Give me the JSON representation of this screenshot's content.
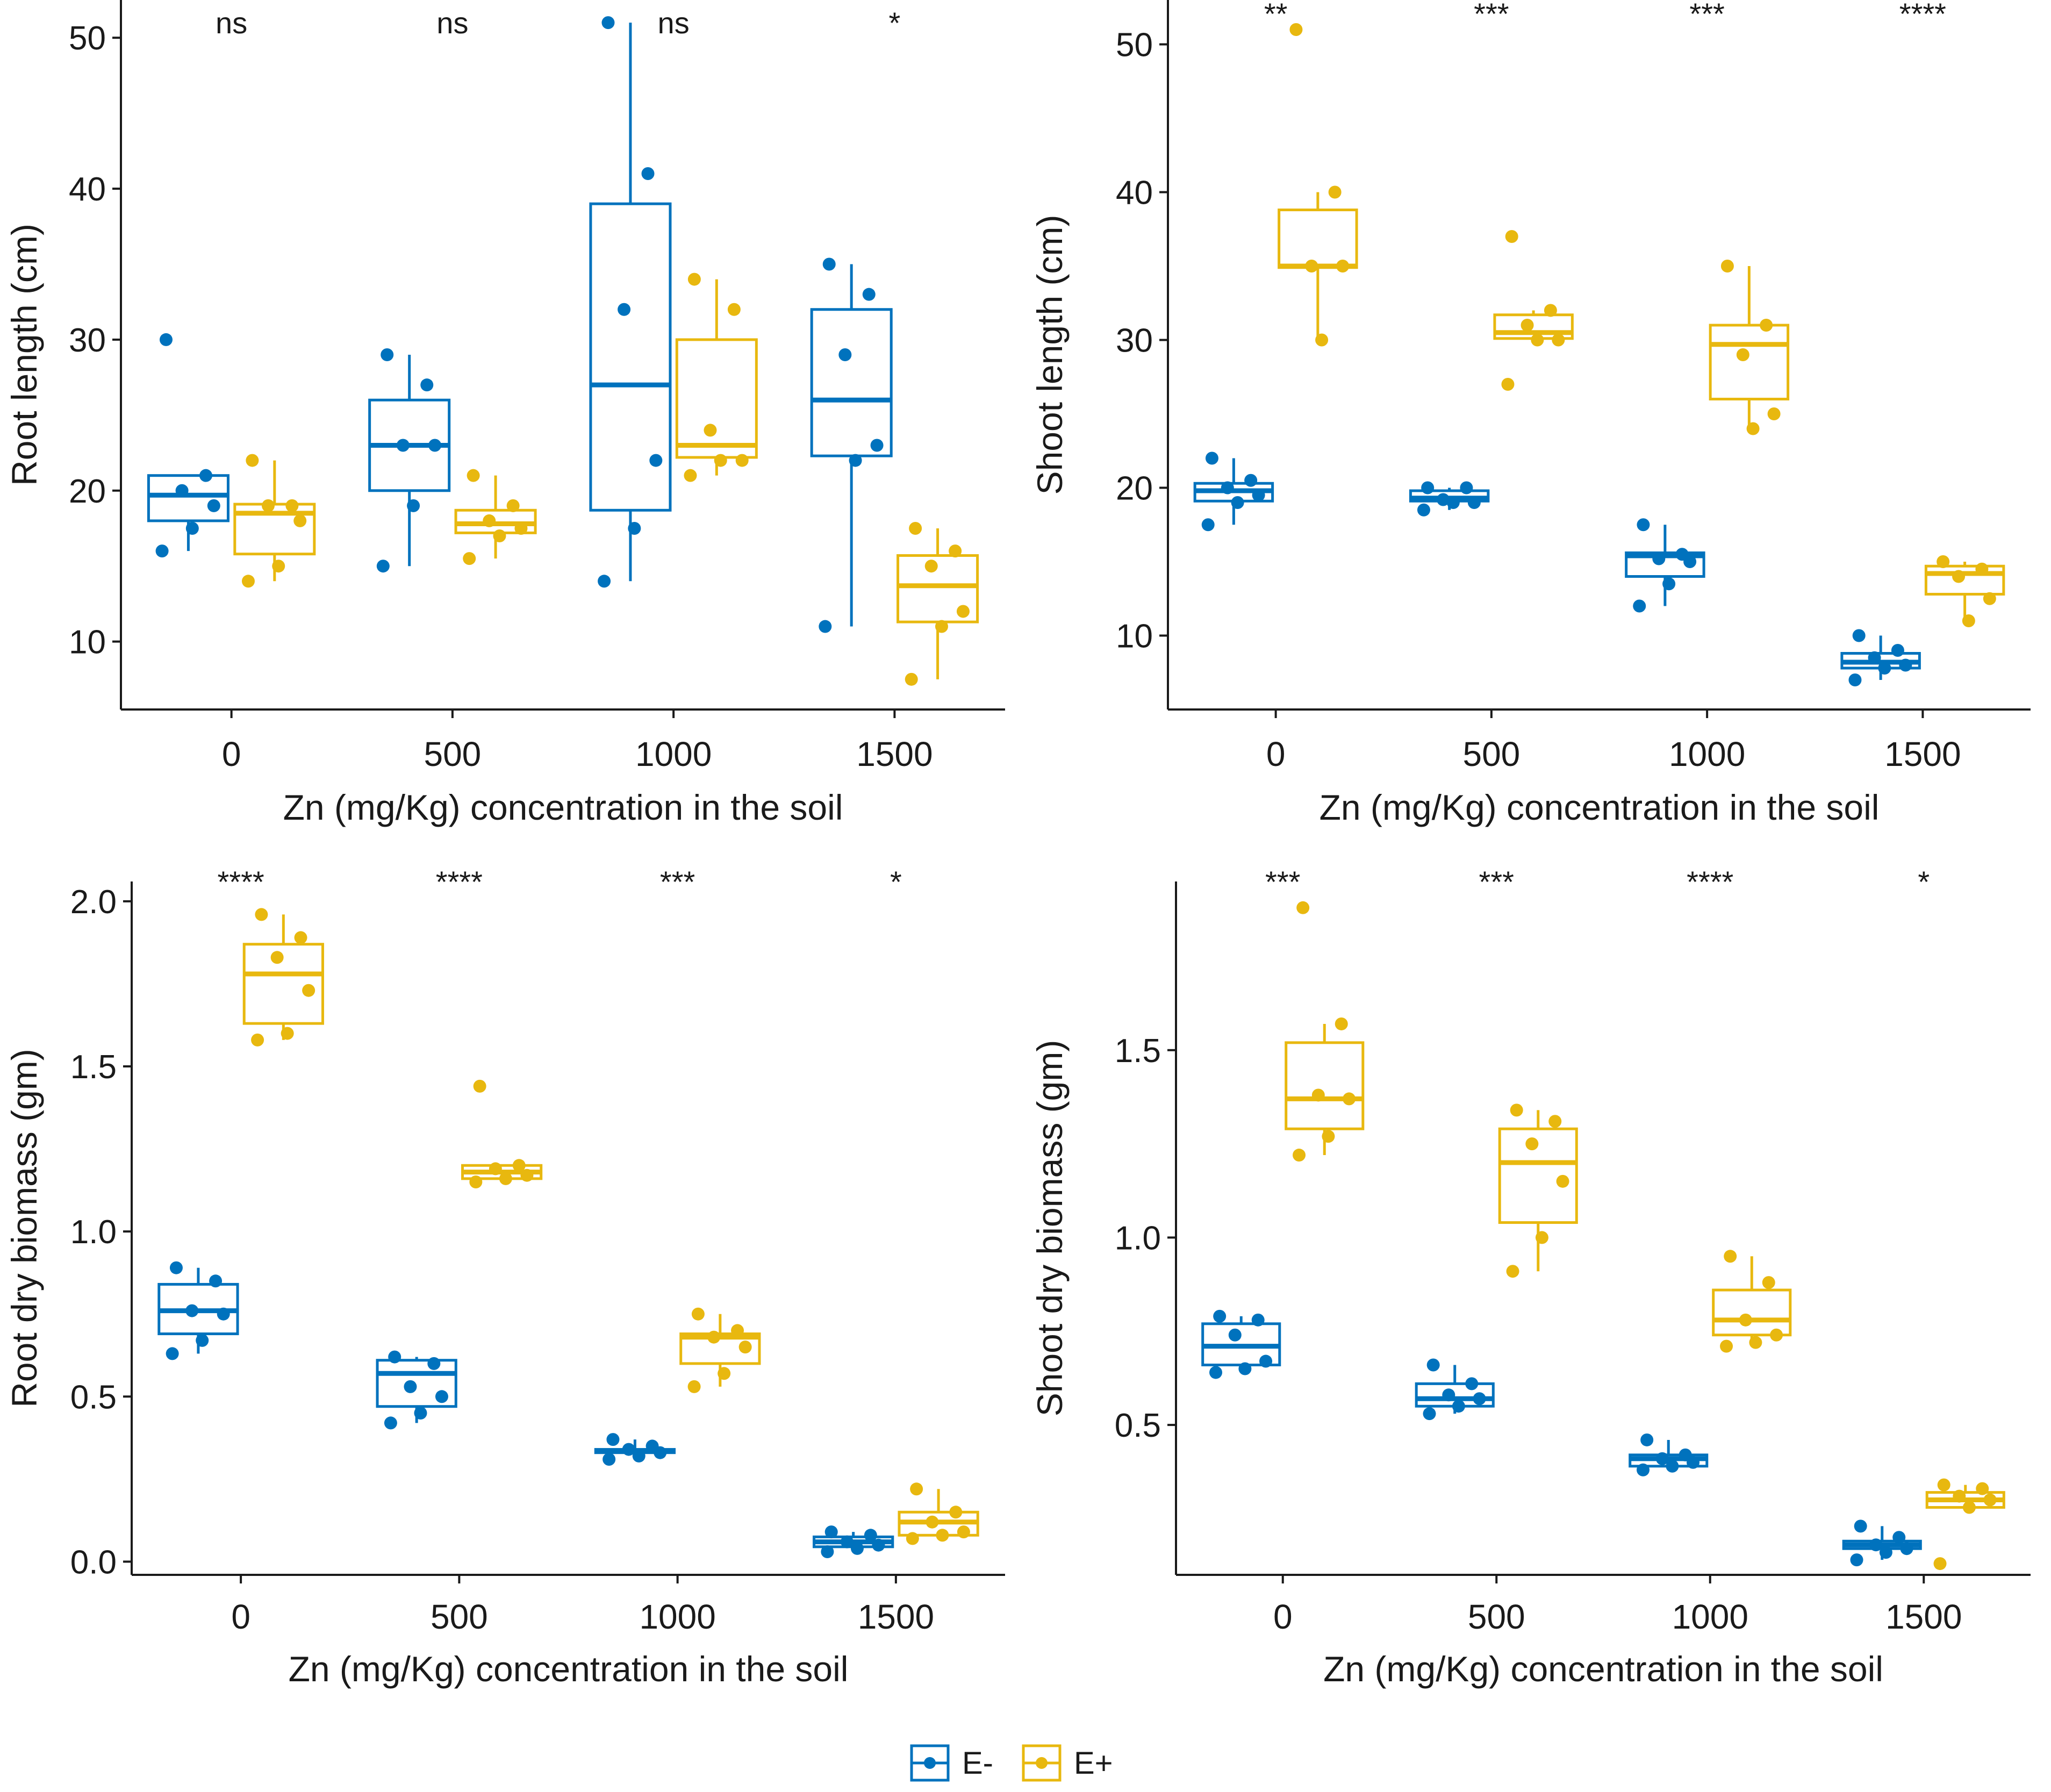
{
  "colors": {
    "E_minus": "#0072BD",
    "E_plus": "#E8B80F",
    "axis": "#1a1a1a"
  },
  "legend": {
    "items": [
      {
        "label": "E-",
        "color": "#0072BD"
      },
      {
        "label": "E+",
        "color": "#E8B80F"
      }
    ]
  },
  "chart_data": [
    {
      "id": "root-length",
      "type": "box",
      "ylabel": "Root length (cm)",
      "xlabel": "Zn (mg/Kg) concentration in the soil",
      "categories": [
        "0",
        "500",
        "1000",
        "1500"
      ],
      "ylim": [
        5.5,
        52.5
      ],
      "yticks": [
        10,
        20,
        30,
        40,
        50
      ],
      "ytick_labels": [
        "10",
        "20",
        "30",
        "40",
        "50"
      ],
      "significance": [
        "ns",
        "ns",
        "ns",
        "*"
      ],
      "series": [
        {
          "name": "E-",
          "boxes": [
            {
              "whisker_low": 16,
              "q1": 18,
              "median": 19.7,
              "q3": 21,
              "whisker_high": 21,
              "points": [
                30,
                21,
                20,
                19,
                17.5,
                16
              ]
            },
            {
              "whisker_low": 15,
              "q1": 20,
              "median": 23,
              "q3": 26,
              "whisker_high": 29,
              "points": [
                29,
                27,
                23,
                23,
                19,
                15
              ]
            },
            {
              "whisker_low": 14,
              "q1": 18.7,
              "median": 27,
              "q3": 39,
              "whisker_high": 51,
              "points": [
                51,
                41,
                32,
                22,
                17.5,
                14
              ]
            },
            {
              "whisker_low": 11,
              "q1": 22.3,
              "median": 26,
              "q3": 32,
              "whisker_high": 35,
              "points": [
                35,
                33,
                29,
                23,
                22,
                11
              ]
            }
          ]
        },
        {
          "name": "E+",
          "boxes": [
            {
              "whisker_low": 14,
              "q1": 15.8,
              "median": 18.5,
              "q3": 19.1,
              "whisker_high": 22,
              "points": [
                22,
                19,
                19,
                18,
                15,
                14
              ]
            },
            {
              "whisker_low": 15.5,
              "q1": 17.2,
              "median": 17.8,
              "q3": 18.7,
              "whisker_high": 21,
              "points": [
                21,
                19,
                18,
                17.5,
                17,
                15.5
              ]
            },
            {
              "whisker_low": 21,
              "q1": 22.2,
              "median": 23,
              "q3": 30,
              "whisker_high": 34,
              "points": [
                34,
                32,
                24,
                22,
                22,
                21
              ]
            },
            {
              "whisker_low": 7.5,
              "q1": 11.3,
              "median": 13.7,
              "q3": 15.7,
              "whisker_high": 17.5,
              "points": [
                17.5,
                16,
                15,
                12,
                11,
                7.5
              ]
            }
          ]
        }
      ]
    },
    {
      "id": "shoot-length",
      "type": "box",
      "ylabel": "Shoot length (cm)",
      "xlabel": "Zn (mg/Kg) concentration in the soil",
      "categories": [
        "0",
        "500",
        "1000",
        "1500"
      ],
      "ylim": [
        5,
        53
      ],
      "yticks": [
        10,
        20,
        30,
        40,
        50
      ],
      "ytick_labels": [
        "10",
        "20",
        "30",
        "40",
        "50"
      ],
      "significance": [
        "**",
        "***",
        "***",
        "****"
      ],
      "series": [
        {
          "name": "E-",
          "boxes": [
            {
              "whisker_low": 17.5,
              "q1": 19.1,
              "median": 19.8,
              "q3": 20.3,
              "whisker_high": 22,
              "points": [
                22,
                20.5,
                20,
                19.5,
                19,
                17.5
              ]
            },
            {
              "whisker_low": 18.5,
              "q1": 19.1,
              "median": 19.3,
              "q3": 19.8,
              "whisker_high": 20,
              "points": [
                20,
                20,
                19.2,
                19,
                19,
                18.5
              ]
            },
            {
              "whisker_low": 12,
              "q1": 14,
              "median": 15.4,
              "q3": 15.6,
              "whisker_high": 17.5,
              "points": [
                17.5,
                15.5,
                15.2,
                15,
                13.5,
                12
              ]
            },
            {
              "whisker_low": 7,
              "q1": 7.8,
              "median": 8.2,
              "q3": 8.8,
              "whisker_high": 10,
              "points": [
                10,
                9,
                8.5,
                8,
                7.8,
                7
              ]
            }
          ]
        },
        {
          "name": "E+",
          "boxes": [
            {
              "whisker_low": 30,
              "q1": 34.9,
              "median": 35,
              "q3": 38.8,
              "whisker_high": 40,
              "points": [
                51,
                40,
                35,
                35,
                30
              ]
            },
            {
              "whisker_low": 30,
              "q1": 30.1,
              "median": 30.5,
              "q3": 31.7,
              "whisker_high": 32,
              "points": [
                37,
                32,
                31,
                30,
                30,
                27
              ]
            },
            {
              "whisker_low": 24,
              "q1": 26,
              "median": 29.7,
              "q3": 31,
              "whisker_high": 35,
              "points": [
                35,
                31,
                29,
                25,
                24
              ]
            },
            {
              "whisker_low": 11,
              "q1": 12.8,
              "median": 14.2,
              "q3": 14.7,
              "whisker_high": 15,
              "points": [
                15,
                14.5,
                14,
                12.5,
                11
              ]
            }
          ]
        }
      ]
    },
    {
      "id": "root-dry-biomass",
      "type": "box",
      "ylabel": "Root dry biomass (gm)",
      "xlabel": "Zn (mg/Kg) concentration in the soil",
      "categories": [
        "0",
        "500",
        "1000",
        "1500"
      ],
      "ylim": [
        -0.04,
        2.06
      ],
      "yticks": [
        0,
        0.5,
        1,
        1.5,
        2
      ],
      "ytick_labels": [
        "0.0",
        "0.5",
        "1.0",
        "1.5",
        "2.0"
      ],
      "significance": [
        "****",
        "****",
        "***",
        "*"
      ],
      "series": [
        {
          "name": "E-",
          "boxes": [
            {
              "whisker_low": 0.63,
              "q1": 0.69,
              "median": 0.76,
              "q3": 0.84,
              "whisker_high": 0.89,
              "points": [
                0.89,
                0.85,
                0.76,
                0.75,
                0.67,
                0.63
              ]
            },
            {
              "whisker_low": 0.42,
              "q1": 0.47,
              "median": 0.57,
              "q3": 0.61,
              "whisker_high": 0.62,
              "points": [
                0.62,
                0.6,
                0.53,
                0.5,
                0.45,
                0.42
              ]
            },
            {
              "whisker_low": 0.31,
              "q1": 0.33,
              "median": 0.335,
              "q3": 0.34,
              "whisker_high": 0.37,
              "points": [
                0.37,
                0.35,
                0.34,
                0.33,
                0.32,
                0.31
              ]
            },
            {
              "whisker_low": 0.03,
              "q1": 0.045,
              "median": 0.06,
              "q3": 0.075,
              "whisker_high": 0.09,
              "points": [
                0.09,
                0.08,
                0.06,
                0.05,
                0.04,
                0.03
              ]
            }
          ]
        },
        {
          "name": "E+",
          "boxes": [
            {
              "whisker_low": 1.58,
              "q1": 1.63,
              "median": 1.78,
              "q3": 1.87,
              "whisker_high": 1.96,
              "points": [
                1.96,
                1.89,
                1.83,
                1.73,
                1.6,
                1.58
              ]
            },
            {
              "whisker_low": 1.15,
              "q1": 1.16,
              "median": 1.18,
              "q3": 1.2,
              "whisker_high": 1.2,
              "points": [
                1.44,
                1.2,
                1.19,
                1.17,
                1.16,
                1.15
              ]
            },
            {
              "whisker_low": 0.53,
              "q1": 0.6,
              "median": 0.68,
              "q3": 0.69,
              "whisker_high": 0.75,
              "points": [
                0.75,
                0.7,
                0.68,
                0.65,
                0.57,
                0.53
              ]
            },
            {
              "whisker_low": 0.07,
              "q1": 0.08,
              "median": 0.12,
              "q3": 0.15,
              "whisker_high": 0.22,
              "points": [
                0.22,
                0.15,
                0.12,
                0.09,
                0.08,
                0.07
              ]
            }
          ]
        }
      ]
    },
    {
      "id": "shoot-dry-biomass",
      "type": "box",
      "ylabel": "Shoot dry biomass (gm)",
      "xlabel": "Zn (mg/Kg) concentration in the soil",
      "categories": [
        "0",
        "500",
        "1000",
        "1500"
      ],
      "ylim": [
        0.1,
        1.95
      ],
      "yticks": [
        0.5,
        1,
        1.5
      ],
      "ytick_labels": [
        "0.5",
        "1.0",
        "1.5"
      ],
      "significance": [
        "***",
        "***",
        "****",
        "*"
      ],
      "series": [
        {
          "name": "E-",
          "boxes": [
            {
              "whisker_low": 0.64,
              "q1": 0.66,
              "median": 0.71,
              "q3": 0.77,
              "whisker_high": 0.79,
              "points": [
                0.79,
                0.78,
                0.74,
                0.67,
                0.65,
                0.64
              ]
            },
            {
              "whisker_low": 0.53,
              "q1": 0.55,
              "median": 0.57,
              "q3": 0.61,
              "whisker_high": 0.66,
              "points": [
                0.66,
                0.61,
                0.58,
                0.57,
                0.55,
                0.53
              ]
            },
            {
              "whisker_low": 0.38,
              "q1": 0.39,
              "median": 0.41,
              "q3": 0.42,
              "whisker_high": 0.46,
              "points": [
                0.46,
                0.42,
                0.41,
                0.4,
                0.39,
                0.38
              ]
            },
            {
              "whisker_low": 0.14,
              "q1": 0.17,
              "median": 0.18,
              "q3": 0.19,
              "whisker_high": 0.23,
              "points": [
                0.23,
                0.2,
                0.18,
                0.17,
                0.16,
                0.14
              ]
            }
          ]
        },
        {
          "name": "E+",
          "boxes": [
            {
              "whisker_low": 1.22,
              "q1": 1.29,
              "median": 1.37,
              "q3": 1.52,
              "whisker_high": 1.57,
              "points": [
                1.88,
                1.57,
                1.38,
                1.37,
                1.27,
                1.22
              ]
            },
            {
              "whisker_low": 0.91,
              "q1": 1.04,
              "median": 1.2,
              "q3": 1.29,
              "whisker_high": 1.34,
              "points": [
                1.34,
                1.31,
                1.25,
                1.15,
                1.0,
                0.91
              ]
            },
            {
              "whisker_low": 0.71,
              "q1": 0.74,
              "median": 0.78,
              "q3": 0.86,
              "whisker_high": 0.95,
              "points": [
                0.95,
                0.88,
                0.78,
                0.74,
                0.72,
                0.71
              ]
            },
            {
              "whisker_low": 0.28,
              "q1": 0.28,
              "median": 0.3,
              "q3": 0.32,
              "whisker_high": 0.34,
              "points": [
                0.34,
                0.33,
                0.31,
                0.3,
                0.28,
                0.13
              ]
            }
          ]
        }
      ]
    }
  ]
}
